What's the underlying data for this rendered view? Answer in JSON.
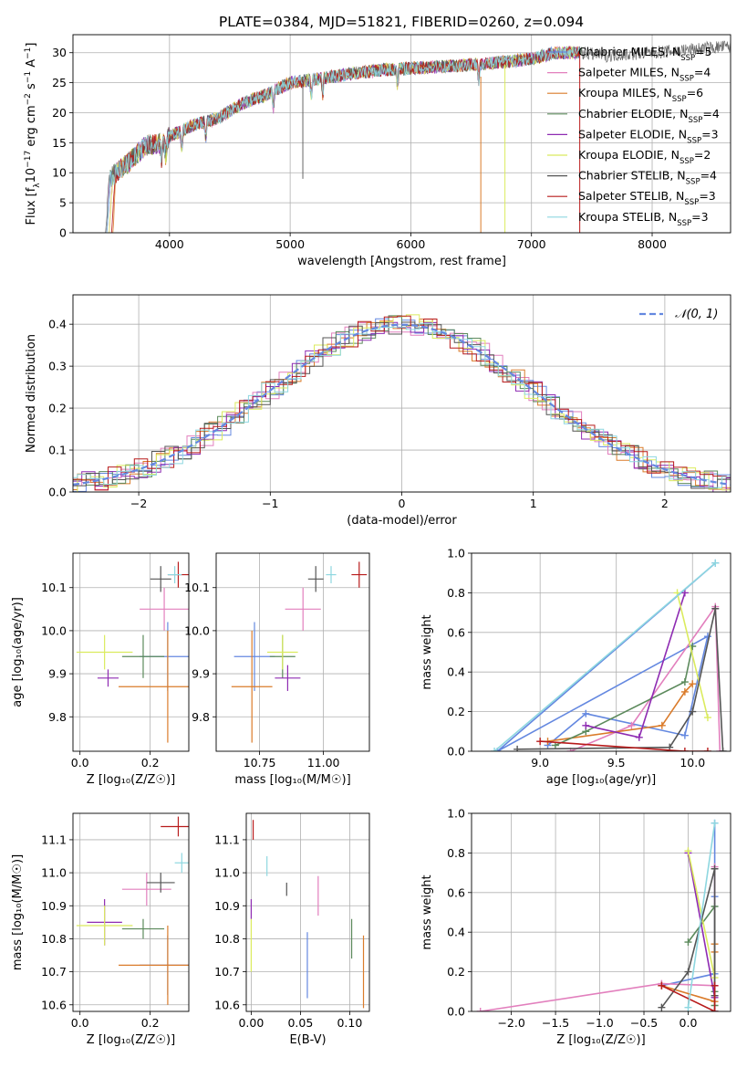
{
  "title": "PLATE=0384, MJD=51821, FIBERID=0260, z=0.094",
  "colors": {
    "blue": "#6488e0",
    "orange": "#da7b2a",
    "green": "#5c8a5c",
    "purple": "#8e2bb2",
    "lime": "#dbeb5e",
    "dark": "#555555",
    "red": "#b81b1b",
    "pink": "#e27fbd",
    "cyan": "#8ed7e0",
    "grid": "#b0b0b0"
  },
  "chart_data": [
    {
      "id": "spectrum",
      "type": "line",
      "xlabel": "wavelength [Angstrom, rest frame]",
      "ylabel_parts": [
        "Flux [f",
        "λ",
        "10",
        "−17",
        " erg cm",
        "−2",
        " s",
        "−1",
        " A",
        "−1",
        "]"
      ],
      "xlim": [
        3200,
        8650
      ],
      "ylim": [
        0,
        33
      ],
      "xticks": [
        4000,
        5000,
        6000,
        7000,
        8000
      ],
      "yticks": [
        0,
        5,
        10,
        15,
        20,
        25,
        30
      ],
      "legend": [
        {
          "pre": "Chabrier MILES, N",
          "sub": "SSP",
          "post": "=5",
          "color": "#6488e0"
        },
        {
          "pre": "Salpeter MILES, N",
          "sub": "SSP",
          "post": "=4",
          "color": "#e27fbd"
        },
        {
          "pre": "Kroupa MILES, N",
          "sub": "SSP",
          "post": "=6",
          "color": "#da7b2a"
        },
        {
          "pre": "Chabrier ELODIE, N",
          "sub": "SSP",
          "post": "=4",
          "color": "#5c8a5c"
        },
        {
          "pre": "Salpeter ELODIE, N",
          "sub": "SSP",
          "post": "=3",
          "color": "#8e2bb2"
        },
        {
          "pre": "Kroupa ELODIE, N",
          "sub": "SSP",
          "post": "=2",
          "color": "#dbeb5e"
        },
        {
          "pre": "Chabrier STELIB, N",
          "sub": "SSP",
          "post": "=4",
          "color": "#555555"
        },
        {
          "pre": "Salpeter STELIB, N",
          "sub": "SSP",
          "post": "=3",
          "color": "#b81b1b"
        },
        {
          "pre": "Kroupa STELIB, N",
          "sub": "SSP",
          "post": "=3",
          "color": "#8ed7e0"
        }
      ],
      "continuum": [
        [
          3500,
          9
        ],
        [
          3650,
          11.5
        ],
        [
          3800,
          14.5
        ],
        [
          3950,
          15
        ],
        [
          4000,
          16
        ],
        [
          4200,
          18
        ],
        [
          4400,
          19
        ],
        [
          4600,
          21.5
        ],
        [
          4800,
          23
        ],
        [
          5000,
          25
        ],
        [
          5200,
          25.5
        ],
        [
          5500,
          26.5
        ],
        [
          5800,
          27.2
        ],
        [
          6100,
          27.5
        ],
        [
          6500,
          28
        ],
        [
          6800,
          28.5
        ],
        [
          7000,
          29
        ],
        [
          7200,
          30
        ],
        [
          7400,
          30
        ],
        [
          7600,
          29.5
        ],
        [
          8000,
          30
        ],
        [
          8300,
          30.5
        ],
        [
          8600,
          31
        ]
      ],
      "series_ranges": [
        {
          "color": "#6488e0",
          "x": [
            3480,
            7410
          ]
        },
        {
          "color": "#e27fbd",
          "x": [
            3500,
            7400
          ]
        },
        {
          "color": "#da7b2a",
          "x": [
            3530,
            7400
          ]
        },
        {
          "color": "#5c8a5c",
          "x": [
            3480,
            7420
          ]
        },
        {
          "color": "#8e2bb2",
          "x": [
            3480,
            7400
          ]
        },
        {
          "color": "#dbeb5e",
          "x": [
            3500,
            7400
          ]
        },
        {
          "color": "#555555",
          "x": [
            3470,
            8650
          ]
        },
        {
          "color": "#b81b1b",
          "x": [
            3520,
            7400
          ]
        },
        {
          "color": "#8ed7e0",
          "x": [
            3480,
            7400
          ]
        }
      ]
    },
    {
      "id": "residuals",
      "type": "histogram",
      "xlabel": "(data-model)/error",
      "ylabel": "Normed distribution",
      "xlim": [
        -2.5,
        2.5
      ],
      "ylim": [
        0,
        0.47
      ],
      "xticks": [
        -2,
        -1,
        0,
        1,
        2
      ],
      "yticks": [
        0.0,
        0.1,
        0.2,
        0.3,
        0.4
      ],
      "legend_label": "𝒩(0, 1)",
      "gauss_color": "#6488e0"
    },
    {
      "id": "age_vs_Z",
      "type": "errorbar",
      "xlabel": "Z [log₁₀(Z/Z☉)]",
      "ylabel": "age  [log₁₀(age/yr)]",
      "xlim": [
        -0.02,
        0.31
      ],
      "ylim": [
        9.72,
        10.18
      ],
      "xticks": [
        0.0,
        0.2
      ],
      "yticks": [
        9.8,
        9.9,
        10.0,
        10.1
      ],
      "points": [
        {
          "color": "#6488e0",
          "x": 0.25,
          "xerr": 0.08,
          "y": 9.94,
          "yerr": 0.08
        },
        {
          "color": "#e27fbd",
          "x": 0.24,
          "xerr": 0.07,
          "y": 10.05,
          "yerr": 0.05
        },
        {
          "color": "#da7b2a",
          "x": 0.25,
          "xerr": 0.14,
          "y": 9.87,
          "yerr": 0.13
        },
        {
          "color": "#5c8a5c",
          "x": 0.18,
          "xerr": 0.06,
          "y": 9.94,
          "yerr": 0.05
        },
        {
          "color": "#8e2bb2",
          "x": 0.08,
          "xerr": 0.03,
          "y": 9.89,
          "yerr": 0.02
        },
        {
          "color": "#dbeb5e",
          "x": 0.07,
          "xerr": 0.08,
          "y": 9.95,
          "yerr": 0.04
        },
        {
          "color": "#555555",
          "x": 0.23,
          "xerr": 0.03,
          "y": 10.12,
          "yerr": 0.03
        },
        {
          "color": "#b81b1b",
          "x": 0.28,
          "xerr": 0.03,
          "y": 10.13,
          "yerr": 0.03
        },
        {
          "color": "#8ed7e0",
          "x": 0.27,
          "xerr": 0.02,
          "y": 10.13,
          "yerr": 0.02
        }
      ]
    },
    {
      "id": "age_vs_mass",
      "type": "errorbar",
      "xlabel": "mass [log₁₀(M/M☉)]",
      "xlim": [
        10.58,
        11.18
      ],
      "ylim": [
        9.72,
        10.18
      ],
      "xticks": [
        10.75,
        11.0
      ],
      "yticks": [
        9.8,
        9.9,
        10.0,
        10.1
      ],
      "points": [
        {
          "color": "#6488e0",
          "x": 10.73,
          "xerr": 0.08,
          "y": 9.94,
          "yerr": 0.08
        },
        {
          "color": "#e27fbd",
          "x": 10.92,
          "xerr": 0.07,
          "y": 10.05,
          "yerr": 0.05
        },
        {
          "color": "#da7b2a",
          "x": 10.72,
          "xerr": 0.08,
          "y": 9.87,
          "yerr": 0.13
        },
        {
          "color": "#5c8a5c",
          "x": 10.84,
          "xerr": 0.05,
          "y": 9.94,
          "yerr": 0.05
        },
        {
          "color": "#8e2bb2",
          "x": 10.86,
          "xerr": 0.05,
          "y": 9.89,
          "yerr": 0.03
        },
        {
          "color": "#dbeb5e",
          "x": 10.84,
          "xerr": 0.06,
          "y": 9.95,
          "yerr": 0.04
        },
        {
          "color": "#555555",
          "x": 10.97,
          "xerr": 0.03,
          "y": 10.12,
          "yerr": 0.03
        },
        {
          "color": "#b81b1b",
          "x": 11.14,
          "xerr": 0.03,
          "y": 10.13,
          "yerr": 0.03
        },
        {
          "color": "#8ed7e0",
          "x": 11.03,
          "xerr": 0.02,
          "y": 10.13,
          "yerr": 0.02
        }
      ]
    },
    {
      "id": "mw_vs_age",
      "type": "line",
      "xlabel": "age  [log₁₀(age/yr)]",
      "ylabel": "mass weight",
      "xlim": [
        8.55,
        10.25
      ],
      "ylim": [
        0,
        1
      ],
      "xticks": [
        9.0,
        9.5,
        10.0
      ],
      "yticks": [
        0.0,
        0.2,
        0.4,
        0.6,
        0.8,
        1.0
      ],
      "series": [
        {
          "color": "#6488e0",
          "points": [
            [
              9.05,
              0.03
            ],
            [
              9.3,
              0.19
            ],
            [
              9.95,
              0.08
            ],
            [
              10.1,
              0.58
            ],
            [
              8.72,
              0.0
            ],
            [
              10.15,
              0.95
            ]
          ]
        },
        {
          "color": "#e27fbd",
          "points": [
            [
              9.2,
              0.0
            ],
            [
              9.6,
              0.13
            ],
            [
              10.15,
              0.73
            ],
            [
              10.18,
              0.0
            ]
          ]
        },
        {
          "color": "#da7b2a",
          "points": [
            [
              9.05,
              0.05
            ],
            [
              9.8,
              0.13
            ],
            [
              9.95,
              0.3
            ],
            [
              10.0,
              0.34
            ]
          ]
        },
        {
          "color": "#5c8a5c",
          "points": [
            [
              9.1,
              0.03
            ],
            [
              9.3,
              0.1
            ],
            [
              9.95,
              0.35
            ],
            [
              10.0,
              0.53
            ]
          ]
        },
        {
          "color": "#8e2bb2",
          "points": [
            [
              9.3,
              0.13
            ],
            [
              9.65,
              0.07
            ],
            [
              9.95,
              0.8
            ]
          ]
        },
        {
          "color": "#dbeb5e",
          "points": [
            [
              9.9,
              0.8
            ],
            [
              10.1,
              0.17
            ]
          ]
        },
        {
          "color": "#555555",
          "points": [
            [
              8.85,
              0.01
            ],
            [
              9.85,
              0.02
            ],
            [
              10.0,
              0.2
            ],
            [
              10.15,
              0.72
            ],
            [
              10.2,
              0.0
            ]
          ]
        },
        {
          "color": "#b81b1b",
          "points": [
            [
              9.0,
              0.05
            ],
            [
              9.95,
              0.0
            ],
            [
              10.1,
              0.0
            ]
          ]
        },
        {
          "color": "#8ed7e0",
          "points": [
            [
              8.7,
              0.0
            ],
            [
              10.15,
              0.95
            ]
          ]
        }
      ]
    },
    {
      "id": "mass_vs_Z",
      "type": "errorbar",
      "xlabel": "Z [log₁₀(Z/Z☉)]",
      "ylabel": "mass [log₁₀(M/M☉)]",
      "xlim": [
        -0.02,
        0.31
      ],
      "ylim": [
        10.58,
        11.18
      ],
      "xticks": [
        0.0,
        0.2
      ],
      "yticks": [
        10.6,
        10.7,
        10.8,
        10.9,
        11.0,
        11.1
      ],
      "points": [
        {
          "color": "#6488e0",
          "x": 0.25,
          "xerr": 0.08,
          "y": 10.72,
          "yerr": 0.09
        },
        {
          "color": "#e27fbd",
          "x": 0.19,
          "xerr": 0.07,
          "y": 10.95,
          "yerr": 0.05
        },
        {
          "color": "#da7b2a",
          "x": 0.25,
          "xerr": 0.14,
          "y": 10.72,
          "yerr": 0.12
        },
        {
          "color": "#5c8a5c",
          "x": 0.18,
          "xerr": 0.06,
          "y": 10.83,
          "yerr": 0.03
        },
        {
          "color": "#8e2bb2",
          "x": 0.07,
          "xerr": 0.05,
          "y": 10.85,
          "yerr": 0.07
        },
        {
          "color": "#dbeb5e",
          "x": 0.07,
          "xerr": 0.08,
          "y": 10.84,
          "yerr": 0.06
        },
        {
          "color": "#555555",
          "x": 0.23,
          "xerr": 0.04,
          "y": 10.97,
          "yerr": 0.03
        },
        {
          "color": "#b81b1b",
          "x": 0.28,
          "xerr": 0.05,
          "y": 11.14,
          "yerr": 0.03
        },
        {
          "color": "#8ed7e0",
          "x": 0.29,
          "xerr": 0.02,
          "y": 11.03,
          "yerr": 0.03
        }
      ]
    },
    {
      "id": "mass_vs_EBV",
      "type": "errorbar",
      "xlabel": "E(B-V)",
      "xlim": [
        -0.005,
        0.12
      ],
      "ylim": [
        10.58,
        11.18
      ],
      "xticks": [
        0.0,
        0.05,
        0.1
      ],
      "yticks": [
        10.6,
        10.7,
        10.8,
        10.9,
        11.0,
        11.1
      ],
      "points": [
        {
          "color": "#6488e0",
          "x": 0.057,
          "xerr": 0,
          "y": 10.72,
          "yerr": 0.1
        },
        {
          "color": "#e27fbd",
          "x": 0.068,
          "xerr": 0,
          "y": 10.93,
          "yerr": 0.06
        },
        {
          "color": "#da7b2a",
          "x": 0.114,
          "xerr": 0,
          "y": 10.7,
          "yerr": 0.11
        },
        {
          "color": "#5c8a5c",
          "x": 0.102,
          "xerr": 0,
          "y": 10.8,
          "yerr": 0.06
        },
        {
          "color": "#8e2bb2",
          "x": 0.0,
          "xerr": 0,
          "y": 10.89,
          "yerr": 0.03
        },
        {
          "color": "#dbeb5e",
          "x": 0.0,
          "xerr": 0,
          "y": 10.78,
          "yerr": 0.08
        },
        {
          "color": "#555555",
          "x": 0.036,
          "xerr": 0,
          "y": 10.95,
          "yerr": 0.02
        },
        {
          "color": "#b81b1b",
          "x": 0.002,
          "xerr": 0,
          "y": 11.13,
          "yerr": 0.03
        },
        {
          "color": "#8ed7e0",
          "x": 0.016,
          "xerr": 0,
          "y": 11.02,
          "yerr": 0.03
        }
      ]
    },
    {
      "id": "mw_vs_Z",
      "type": "line",
      "xlabel": "Z [log₁₀(Z/Z☉)]",
      "ylabel": "mass weight",
      "xlim": [
        -2.45,
        0.48
      ],
      "ylim": [
        0,
        1
      ],
      "xticks": [
        -2.0,
        -1.5,
        -1.0,
        -0.5,
        0.0
      ],
      "yticks": [
        0.0,
        0.2,
        0.4,
        0.6,
        0.8,
        1.0
      ],
      "series": [
        {
          "color": "#6488e0",
          "points": [
            [
              -0.3,
              0.13
            ],
            [
              0.3,
              0.19
            ],
            [
              0.3,
              0.08
            ],
            [
              0.3,
              0.58
            ],
            [
              0.3,
              0.0
            ],
            [
              0.3,
              0.95
            ]
          ]
        },
        {
          "color": "#e27fbd",
          "points": [
            [
              -2.35,
              0.0
            ],
            [
              -0.3,
              0.14
            ],
            [
              0.3,
              0.13
            ],
            [
              0.3,
              0.73
            ]
          ]
        },
        {
          "color": "#da7b2a",
          "points": [
            [
              -0.3,
              0.13
            ],
            [
              0.3,
              0.05
            ],
            [
              0.3,
              0.3
            ],
            [
              0.3,
              0.34
            ]
          ]
        },
        {
          "color": "#5c8a5c",
          "points": [
            [
              0.0,
              0.35
            ],
            [
              0.3,
              0.53
            ],
            [
              0.3,
              0.1
            ],
            [
              0.3,
              0.03
            ]
          ]
        },
        {
          "color": "#8e2bb2",
          "points": [
            [
              0.0,
              0.8
            ],
            [
              0.3,
              0.07
            ],
            [
              0.3,
              0.13
            ]
          ]
        },
        {
          "color": "#dbeb5e",
          "points": [
            [
              0.0,
              0.81
            ],
            [
              0.3,
              0.17
            ]
          ]
        },
        {
          "color": "#555555",
          "points": [
            [
              -0.3,
              0.02
            ],
            [
              0.0,
              0.2
            ],
            [
              0.3,
              0.72
            ],
            [
              0.3,
              0.08
            ]
          ]
        },
        {
          "color": "#b81b1b",
          "points": [
            [
              -0.3,
              0.13
            ],
            [
              0.3,
              0.0
            ],
            [
              0.3,
              0.13
            ]
          ]
        },
        {
          "color": "#8ed7e0",
          "points": [
            [
              0.0,
              0.02
            ],
            [
              0.3,
              0.95
            ]
          ]
        }
      ]
    }
  ]
}
